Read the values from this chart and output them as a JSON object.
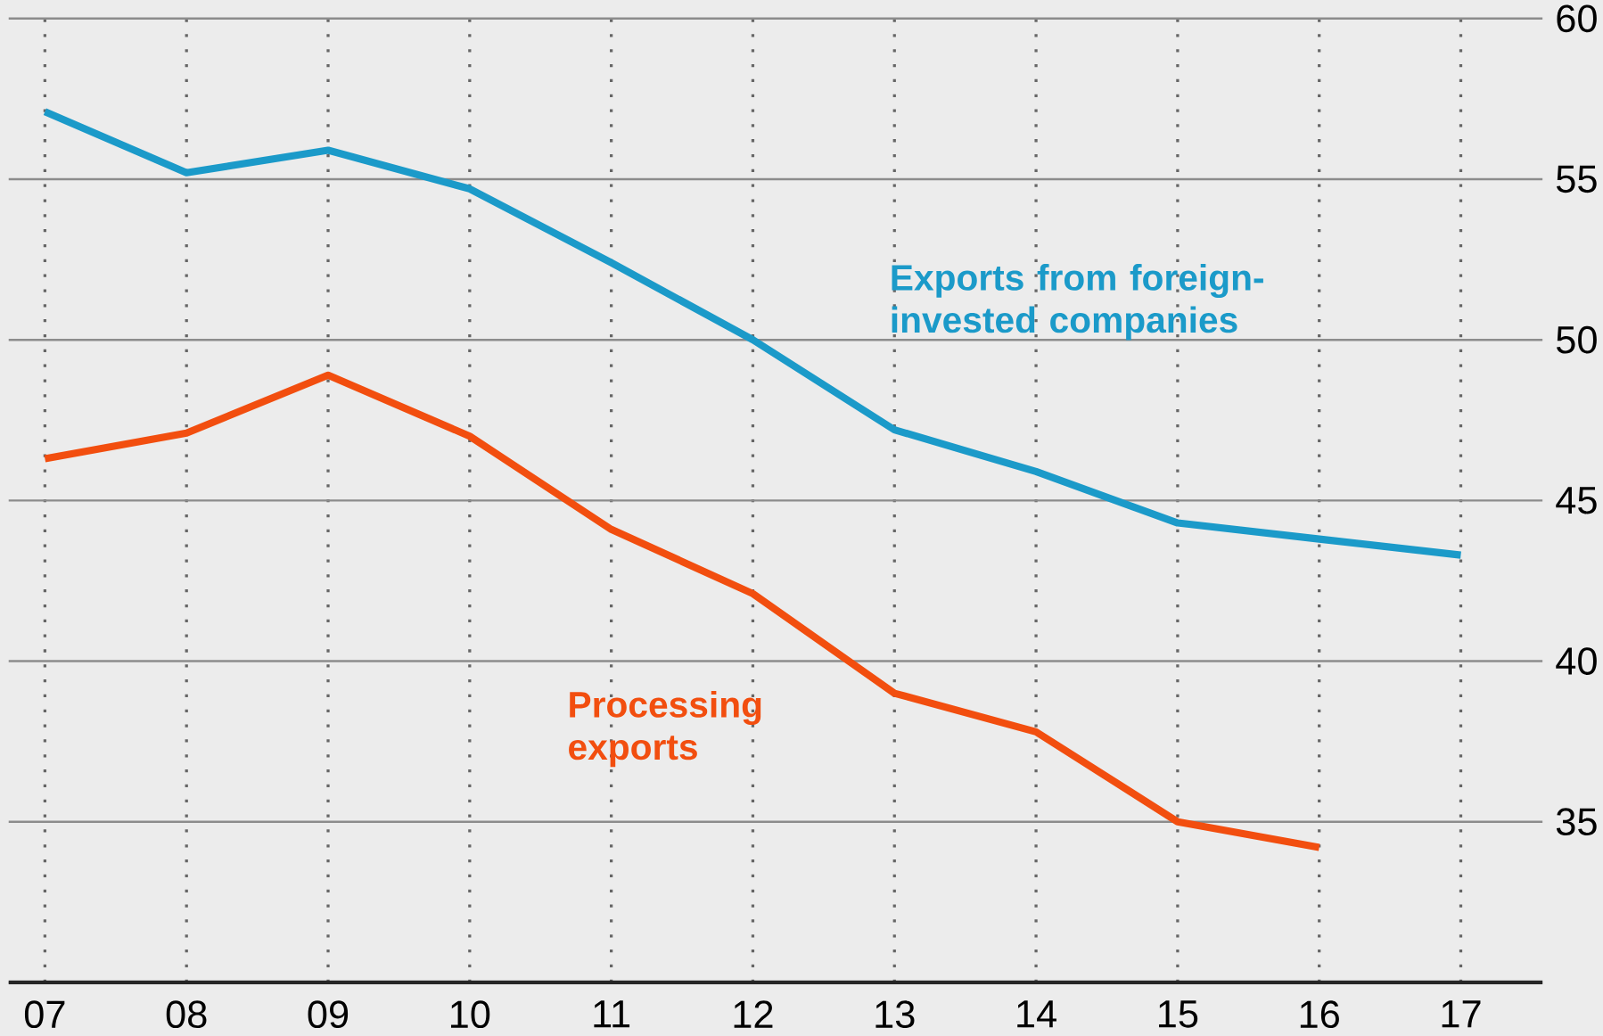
{
  "chart_data": {
    "type": "line",
    "categories": [
      "07",
      "08",
      "09",
      "10",
      "11",
      "12",
      "13",
      "14",
      "15",
      "16",
      "17"
    ],
    "series": [
      {
        "name": "Exports from foreign-invested companies",
        "color": "#1b9ac9",
        "values": [
          57.1,
          55.2,
          55.9,
          54.7,
          52.4,
          50.0,
          47.2,
          45.9,
          44.3,
          43.8,
          43.3
        ]
      },
      {
        "name": "Processing exports",
        "color": "#f24e0f",
        "values": [
          46.3,
          47.1,
          48.9,
          47.0,
          44.1,
          42.1,
          39.0,
          37.8,
          35.0,
          34.2,
          null
        ]
      }
    ],
    "ylim": [
      30,
      60
    ],
    "yticks": [
      {
        "value": 30,
        "label": null
      },
      35,
      40,
      45,
      50,
      55,
      60
    ],
    "grid": true,
    "marker": "none",
    "line_style": "solid"
  }
}
